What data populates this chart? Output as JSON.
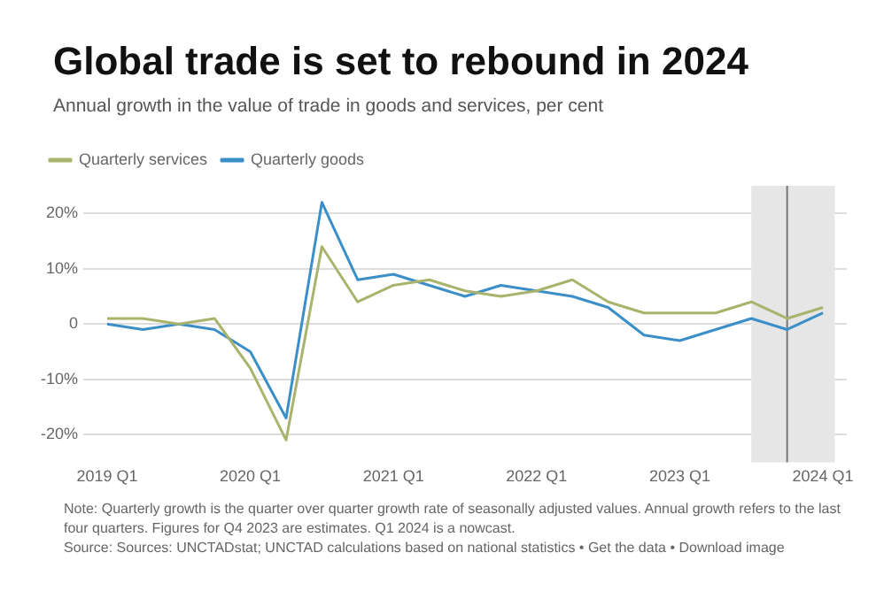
{
  "chart_data": {
    "type": "line",
    "title": "Global trade is set to rebound in 2024",
    "subtitle": "Annual growth in the value of trade in goods and services, per cent",
    "x": [
      "2019-01",
      "2019-04",
      "2019-07",
      "2019-10",
      "2020-01",
      "2020-04",
      "2020-07",
      "2020-10",
      "2021-01",
      "2021-04",
      "2021-07",
      "2021-10",
      "2022-01",
      "2022-04",
      "2022-07",
      "2022-10",
      "2023-01",
      "2023-04",
      "2023-07",
      "2023-10",
      "2024-01"
    ],
    "series": [
      {
        "name": "Quarterly services",
        "color": "#a9b36b",
        "values": [
          1,
          1,
          0,
          1,
          -8,
          -21,
          14,
          4,
          7,
          8,
          6,
          5,
          6,
          8,
          4,
          2,
          2,
          2,
          4,
          1,
          3
        ]
      },
      {
        "name": "Quarterly goods",
        "color": "#3b8fc9",
        "values": [
          0,
          -1,
          0,
          -1,
          -5,
          -17,
          22,
          8,
          9,
          7,
          5,
          7,
          6,
          5,
          3,
          -2,
          -3,
          -1,
          1,
          -1,
          2
        ]
      }
    ],
    "xlim": [
      "2018-11",
      "2024-03"
    ],
    "xticks": [
      {
        "value": "2019-01",
        "label": "2019 Q1"
      },
      {
        "value": "2020-01",
        "label": "2020 Q1"
      },
      {
        "value": "2021-01",
        "label": "2021 Q1"
      },
      {
        "value": "2022-01",
        "label": "2022 Q1"
      },
      {
        "value": "2023-01",
        "label": "2023 Q1"
      },
      {
        "value": "2024-01",
        "label": "2024 Q1"
      }
    ],
    "ylim": [
      -25,
      25
    ],
    "yticks": [
      {
        "value": -20,
        "label": "-20%"
      },
      {
        "value": -10,
        "label": "-10%"
      },
      {
        "value": 0,
        "label": "0"
      },
      {
        "value": 10,
        "label": "10%"
      },
      {
        "value": 20,
        "label": "20%"
      }
    ],
    "bands": [
      {
        "axis": "x",
        "from": "2023-07",
        "to": "2024-02",
        "color": "#e6e6e6"
      }
    ],
    "ref_lines": [
      {
        "axis": "x",
        "value": "2023-10",
        "color": "#777777"
      }
    ],
    "grid": "y",
    "legend": "top left",
    "marker": "none",
    "line_style": "solid",
    "annotations": [
      "Note: Quarterly growth is the quarter over quarter growth rate of seasonally adjusted values. Annual growth refers to the last four quarters. Figures for Q4 2023 are estimates. Q1 2024 is a nowcast.",
      "Source: Sources: UNCTADstat; UNCTAD calculations based on national statistics • Get the data • Download image"
    ]
  }
}
